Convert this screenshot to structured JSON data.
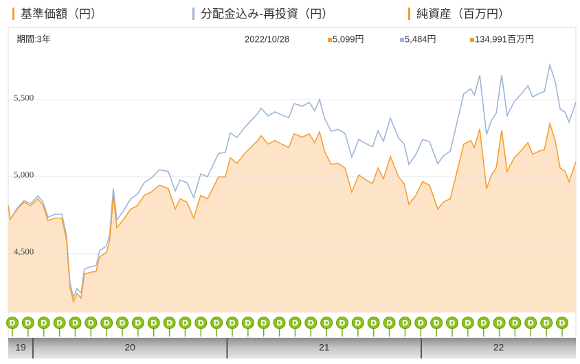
{
  "chart_data": {
    "type": "line",
    "period_label": "期間:3年",
    "date": "2022/10/28",
    "dividend_label": "D",
    "net_assets": {
      "name": "純資産（百万円）",
      "color": "#f39a2e",
      "latest_label": "134,991百万円"
    },
    "x": [
      2019.873,
      2019.883,
      2019.919,
      2019.954,
      2019.989,
      2020.025,
      2020.05,
      2020.078,
      2020.113,
      2020.149,
      2020.173,
      2020.191,
      2020.209,
      2020.227,
      2020.248,
      2020.265,
      2020.301,
      2020.326,
      2020.343,
      2020.379,
      2020.396,
      2020.414,
      2020.432,
      2020.467,
      2020.503,
      2020.538,
      2020.573,
      2020.609,
      2020.651,
      2020.697,
      2020.733,
      2020.758,
      2020.793,
      2020.828,
      2020.864,
      2020.899,
      2020.935,
      2020.956,
      2020.991,
      2021.016,
      2021.051,
      2021.087,
      2021.122,
      2021.158,
      2021.175,
      2021.211,
      2021.246,
      2021.281,
      2021.317,
      2021.345,
      2021.388,
      2021.423,
      2021.451,
      2021.476,
      2021.501,
      2021.536,
      2021.572,
      2021.607,
      2021.642,
      2021.678,
      2021.713,
      2021.749,
      2021.777,
      2021.805,
      2021.841,
      2021.883,
      2021.912,
      2021.936,
      2021.972,
      2022.007,
      2022.042,
      2022.085,
      2022.113,
      2022.149,
      2022.184,
      2022.219,
      2022.255,
      2022.273,
      2022.301,
      2022.336,
      2022.361,
      2022.386,
      2022.414,
      2022.442,
      2022.478,
      2022.513,
      2022.549,
      2022.573,
      2022.609,
      2022.634,
      2022.662,
      2022.69,
      2022.715,
      2022.74,
      2022.761,
      2022.796
    ],
    "series": [
      {
        "name": "基準価額（円）",
        "color": "#f5a033",
        "fill": "#fde4c8",
        "latest_label": "5,099円",
        "values": [
          4813,
          4724,
          4791,
          4836,
          4813,
          4858,
          4822,
          4716,
          4733,
          4733,
          4591,
          4280,
          4191,
          4244,
          4213,
          4369,
          4382,
          4387,
          4480,
          4511,
          4591,
          4880,
          4671,
          4724,
          4791,
          4813,
          4880,
          4902,
          4947,
          4924,
          4791,
          4858,
          4836,
          4733,
          4880,
          4858,
          4947,
          5000,
          5000,
          5124,
          5089,
          5147,
          5191,
          5236,
          5267,
          5213,
          5236,
          5213,
          5191,
          5280,
          5258,
          5280,
          5222,
          5293,
          5169,
          5080,
          5089,
          5058,
          4902,
          5013,
          4982,
          4956,
          5058,
          4987,
          5133,
          5000,
          4956,
          4822,
          4880,
          4969,
          4947,
          4791,
          4836,
          4858,
          5036,
          5213,
          5236,
          5191,
          5311,
          4924,
          5013,
          5058,
          5302,
          5036,
          5124,
          5169,
          5222,
          5147,
          5169,
          5178,
          5347,
          5236,
          5058,
          5036,
          4969,
          5099
        ]
      },
      {
        "name": "分配金込み-再投資（円）",
        "color": "#9cb5d8",
        "latest_label": "5,484円",
        "values": [
          4813,
          4725,
          4796,
          4846,
          4827,
          4876,
          4842,
          4738,
          4757,
          4759,
          4618,
          4308,
          4220,
          4275,
          4246,
          4403,
          4418,
          4425,
          4520,
          4553,
          4635,
          4925,
          4720,
          4781,
          4857,
          4887,
          4962,
          4992,
          5047,
          5035,
          4909,
          4980,
          4963,
          4866,
          5019,
          5002,
          5097,
          5153,
          5159,
          5286,
          5255,
          5316,
          5364,
          5413,
          5446,
          5396,
          5422,
          5403,
          5384,
          5476,
          5459,
          5484,
          5429,
          5503,
          5382,
          5296,
          5309,
          5282,
          5129,
          5244,
          5217,
          5195,
          5299,
          5231,
          5381,
          5253,
          5212,
          5080,
          5145,
          5243,
          5230,
          5084,
          5136,
          5167,
          5354,
          5540,
          5572,
          5532,
          5659,
          5276,
          5367,
          5414,
          5661,
          5397,
          5488,
          5536,
          5592,
          5519,
          5543,
          5554,
          5726,
          5617,
          5441,
          5421,
          5356,
          5484
        ]
      }
    ],
    "xlim": [
      2019.873,
      2022.796
    ],
    "xticks": [
      {
        "value": 2019,
        "label": "19"
      },
      {
        "value": 2020,
        "label": "20"
      },
      {
        "value": 2021,
        "label": "21"
      },
      {
        "value": 2022,
        "label": "22"
      }
    ],
    "ylim": [
      4120,
      5970
    ],
    "yticks": [
      {
        "value": 4500,
        "label": "4,500"
      },
      {
        "value": 5000,
        "label": "5,000"
      },
      {
        "value": 5500,
        "label": "5,500"
      }
    ],
    "grid": true
  }
}
